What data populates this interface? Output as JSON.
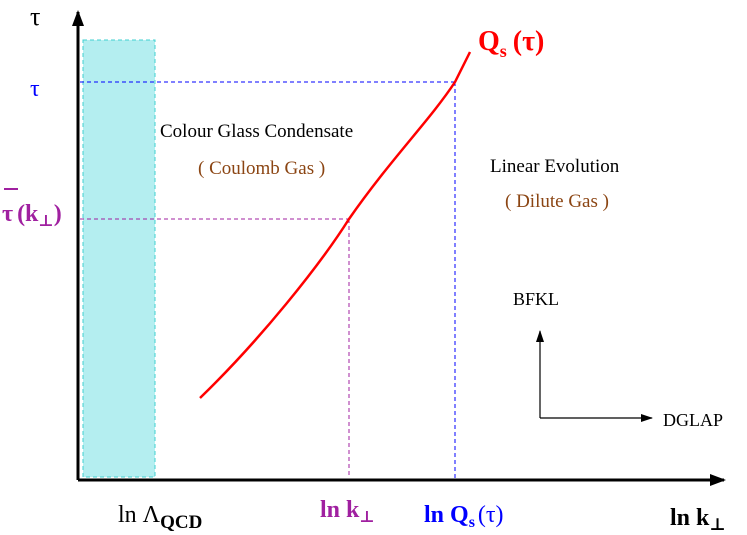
{
  "colors": {
    "axis": "#000000",
    "saturation_curve": "#ff0000",
    "tau_guides": "#0000ff",
    "tau_bar_guides": "#a020a0",
    "brown_text": "#8b4513",
    "cyan_band_fill": "#b4eef0",
    "cyan_band_stroke": "#40d0d0"
  },
  "axes": {
    "y_label": "τ",
    "x_label_main": "ln k",
    "x_label_sub": "⊥"
  },
  "curve_label": {
    "main": "Q",
    "sub": "s",
    "arg": "(τ)"
  },
  "y_ticks": {
    "tau": "τ",
    "tau_bar_main": "τ",
    "tau_bar_arg_open": "(k",
    "tau_bar_arg_sub": "⊥",
    "tau_bar_arg_close": ")"
  },
  "x_ticks": {
    "lambda_prefix": "ln Λ",
    "lambda_sub": "QCD",
    "lnk_main": "ln k",
    "lnk_sub": "⊥",
    "lnqs_main": "ln Q",
    "lnqs_sub": "s",
    "lnqs_arg": "(τ)"
  },
  "regions": {
    "cgc_title": "Colour Glass Condensate",
    "cgc_subtitle": "( Coulomb Gas )",
    "linear_title": "Linear Evolution",
    "linear_subtitle": "( Dilute Gas )"
  },
  "evolution_arrows": {
    "vertical_label": "BFKL",
    "horizontal_label": "DGLAP"
  }
}
